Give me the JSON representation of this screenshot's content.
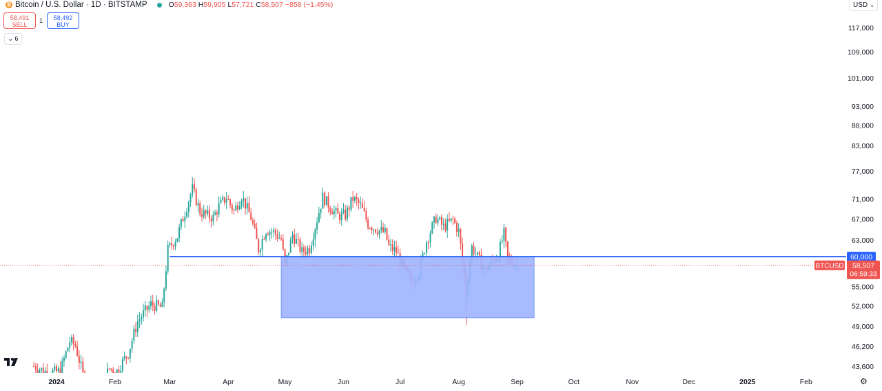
{
  "header": {
    "title": "Bitcoin / U.S. Dollar · 1D · BITSTAMP",
    "ohlc": {
      "o_label": "O",
      "o_value": "59,363",
      "h_label": "H",
      "h_value": "59,905",
      "l_label": "L",
      "l_value": "57,721",
      "c_label": "C",
      "c_value": "58,507",
      "change": "−858 (−1.45%)"
    }
  },
  "trade": {
    "sell_price": "58,491",
    "sell_label": "SELL",
    "spread": "1",
    "buy_price": "58,492",
    "buy_label": "BUY"
  },
  "indicators_toggle": "6",
  "currency": "USD",
  "colors": {
    "up": "#26a69a",
    "down": "#ef5350",
    "level": "#2962ff",
    "zone": "#9fb4ff",
    "axis_text": "#131722"
  },
  "chart_data": {
    "type": "candlestick",
    "symbol": "BTCUSD",
    "last_price": "58,507",
    "countdown": "06:59:33",
    "price_scale": "log",
    "ylim": [
      42500,
      125000
    ],
    "y_ticks": [
      117000,
      109000,
      101000,
      93000,
      88000,
      83000,
      77000,
      71000,
      67000,
      63000,
      55000,
      52000,
      49000,
      46200,
      43600
    ],
    "x_labels": [
      "2024",
      "Feb",
      "Mar",
      "Apr",
      "May",
      "Jun",
      "Jul",
      "Aug",
      "Sep",
      "Oct",
      "Nov",
      "Dec",
      "2025",
      "Feb"
    ],
    "x_label_dates": [
      "2024-01-01",
      "2024-02-01",
      "2024-03-01",
      "2024-04-01",
      "2024-05-01",
      "2024-06-01",
      "2024-07-01",
      "2024-08-01",
      "2024-09-01",
      "2024-10-01",
      "2024-11-01",
      "2024-12-01",
      "2025-01-01",
      "2025-02-01"
    ],
    "horizontal_line": {
      "price": 60000,
      "label": "60,000",
      "from_date": "2024-03-01"
    },
    "zone": {
      "from_date": "2024-04-29",
      "to_date": "2024-09-10",
      "low": 50200,
      "high": 60000
    },
    "close_series": [
      [
        "2023-12-20",
        43600
      ],
      [
        "2023-12-27",
        42800
      ],
      [
        "2024-01-03",
        42900
      ],
      [
        "2024-01-08",
        46900
      ],
      [
        "2024-01-11",
        46300
      ],
      [
        "2024-01-15",
        42500
      ],
      [
        "2024-01-22",
        39800
      ],
      [
        "2024-01-29",
        43300
      ],
      [
        "2024-02-02",
        43000
      ],
      [
        "2024-02-08",
        45300
      ],
      [
        "2024-02-13",
        49700
      ],
      [
        "2024-02-20",
        52200
      ],
      [
        "2024-02-26",
        51700
      ],
      [
        "2024-02-29",
        61200
      ],
      [
        "2024-03-05",
        63700
      ],
      [
        "2024-03-09",
        68300
      ],
      [
        "2024-03-13",
        73100
      ],
      [
        "2024-03-17",
        68400
      ],
      [
        "2024-03-20",
        67800
      ],
      [
        "2024-03-24",
        67200
      ],
      [
        "2024-03-27",
        69500
      ],
      [
        "2024-03-31",
        71300
      ],
      [
        "2024-04-04",
        68500
      ],
      [
        "2024-04-08",
        71600
      ],
      [
        "2024-04-13",
        67200
      ],
      [
        "2024-04-17",
        61300
      ],
      [
        "2024-04-21",
        64900
      ],
      [
        "2024-04-25",
        64500
      ],
      [
        "2024-04-29",
        63100
      ],
      [
        "2024-05-01",
        58300
      ],
      [
        "2024-05-05",
        64000
      ],
      [
        "2024-05-10",
        60800
      ],
      [
        "2024-05-14",
        61500
      ],
      [
        "2024-05-18",
        66900
      ],
      [
        "2024-05-21",
        71400
      ],
      [
        "2024-05-25",
        69300
      ],
      [
        "2024-05-29",
        67600
      ],
      [
        "2024-06-02",
        67700
      ],
      [
        "2024-06-06",
        71100
      ],
      [
        "2024-06-10",
        69600
      ],
      [
        "2024-06-14",
        66000
      ],
      [
        "2024-06-18",
        65100
      ],
      [
        "2024-06-23",
        64300
      ],
      [
        "2024-06-25",
        61800
      ],
      [
        "2024-06-29",
        60900
      ],
      [
        "2024-07-04",
        57100
      ],
      [
        "2024-07-07",
        55900
      ],
      [
        "2024-07-11",
        57300
      ],
      [
        "2024-07-15",
        62800
      ],
      [
        "2024-07-20",
        67200
      ],
      [
        "2024-07-24",
        65400
      ],
      [
        "2024-07-29",
        66800
      ],
      [
        "2024-08-01",
        64600
      ],
      [
        "2024-08-05",
        54000
      ],
      [
        "2024-08-08",
        61700
      ],
      [
        "2024-08-12",
        59300
      ],
      [
        "2024-08-15",
        57600
      ],
      [
        "2024-08-19",
        59400
      ],
      [
        "2024-08-22",
        60300
      ],
      [
        "2024-08-25",
        64200
      ],
      [
        "2024-08-27",
        59400
      ],
      [
        "2024-08-30",
        59100
      ],
      [
        "2024-09-01",
        58507
      ]
    ]
  }
}
